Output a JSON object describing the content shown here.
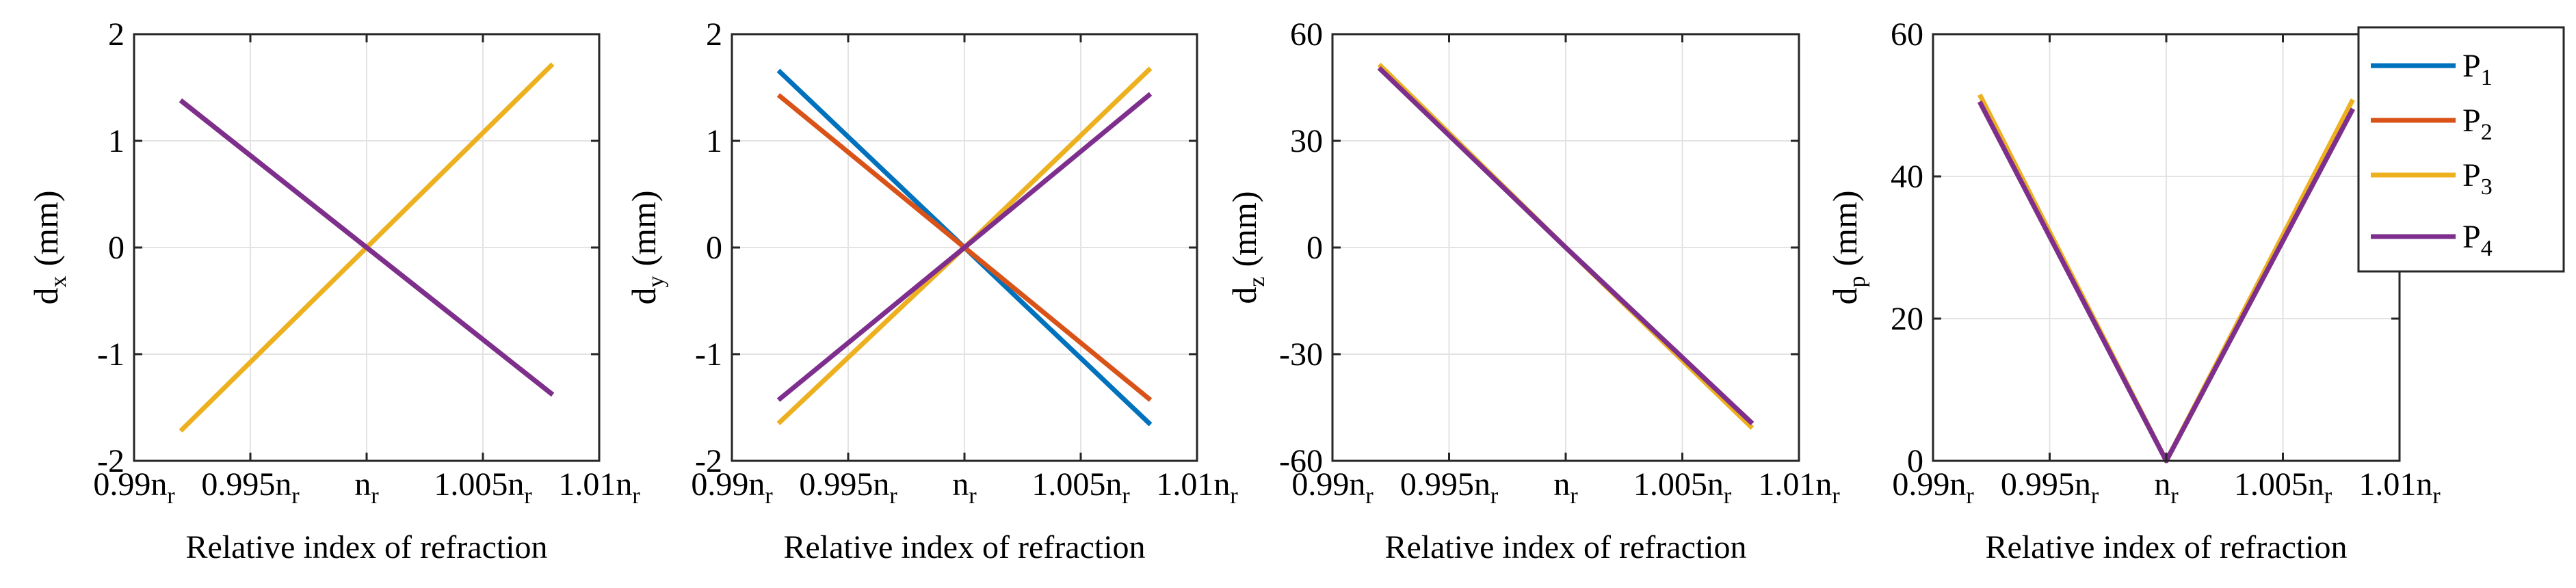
{
  "chart_data": [
    {
      "type": "line",
      "xlabel": "Relative index of refraction",
      "ylabel": "d",
      "ylabel_sub": "x",
      "ylabel_unit": "(mm)",
      "xlim": [
        0.99,
        1.01
      ],
      "ylim": [
        -2,
        2
      ],
      "yticks": [
        -2,
        -1,
        0,
        1,
        2
      ],
      "ytick_labels": [
        "-2",
        "-1",
        "0",
        "1",
        "2"
      ],
      "xticks": [
        0.99,
        0.995,
        1.0,
        1.005,
        1.01
      ],
      "xtick_labels": [
        [
          "0.99n",
          "r"
        ],
        [
          "0.995n",
          "r"
        ],
        [
          "n",
          "r"
        ],
        [
          "1.005n",
          "r"
        ],
        [
          "1.01n",
          "r"
        ]
      ],
      "grid": true,
      "series": [
        {
          "name": "P1",
          "x": [
            0.992,
            1.0,
            1.008
          ],
          "y": [
            1.38,
            0,
            -1.38
          ]
        },
        {
          "name": "P2",
          "x": [
            0.992,
            1.0,
            1.008
          ],
          "y": [
            1.38,
            0,
            -1.38
          ]
        },
        {
          "name": "P3",
          "x": [
            0.992,
            1.0,
            1.008
          ],
          "y": [
            -1.72,
            0,
            1.72
          ]
        },
        {
          "name": "P4",
          "x": [
            0.992,
            1.0,
            1.008
          ],
          "y": [
            1.38,
            0,
            -1.38
          ]
        }
      ]
    },
    {
      "type": "line",
      "xlabel": "Relative index of refraction",
      "ylabel": "d",
      "ylabel_sub": "y",
      "ylabel_unit": "(mm)",
      "xlim": [
        0.99,
        1.01
      ],
      "ylim": [
        -2,
        2
      ],
      "yticks": [
        -2,
        -1,
        0,
        1,
        2
      ],
      "ytick_labels": [
        "-2",
        "-1",
        "0",
        "1",
        "2"
      ],
      "xticks": [
        0.99,
        0.995,
        1.0,
        1.005,
        1.01
      ],
      "xtick_labels": [
        [
          "0.99n",
          "r"
        ],
        [
          "0.995n",
          "r"
        ],
        [
          "n",
          "r"
        ],
        [
          "1.005n",
          "r"
        ],
        [
          "1.01n",
          "r"
        ]
      ],
      "grid": true,
      "series": [
        {
          "name": "P1",
          "x": [
            0.992,
            1.0,
            1.008
          ],
          "y": [
            1.66,
            0,
            -1.66
          ]
        },
        {
          "name": "P2",
          "x": [
            0.992,
            1.0,
            1.008
          ],
          "y": [
            1.43,
            0,
            -1.43
          ]
        },
        {
          "name": "P3",
          "x": [
            0.992,
            1.0,
            1.008
          ],
          "y": [
            -1.65,
            0,
            1.68
          ]
        },
        {
          "name": "P4",
          "x": [
            0.992,
            1.0,
            1.008
          ],
          "y": [
            -1.43,
            0,
            1.44
          ]
        }
      ]
    },
    {
      "type": "line",
      "xlabel": "Relative index of refraction",
      "ylabel": "d",
      "ylabel_sub": "z",
      "ylabel_unit": "(mm)",
      "xlim": [
        0.99,
        1.01
      ],
      "ylim": [
        -60,
        60
      ],
      "yticks": [
        -60,
        -30,
        0,
        30,
        60
      ],
      "ytick_labels": [
        "-60",
        "-30",
        "0",
        "30",
        "60"
      ],
      "xticks": [
        0.99,
        0.995,
        1.0,
        1.005,
        1.01
      ],
      "xtick_labels": [
        [
          "0.99n",
          "r"
        ],
        [
          "0.995n",
          "r"
        ],
        [
          "n",
          "r"
        ],
        [
          "1.005n",
          "r"
        ],
        [
          "1.01n",
          "r"
        ]
      ],
      "grid": true,
      "series": [
        {
          "name": "P1",
          "x": [
            0.992,
            1.0,
            1.008
          ],
          "y": [
            50.5,
            0,
            -49.5
          ]
        },
        {
          "name": "P2",
          "x": [
            0.992,
            1.0,
            1.008
          ],
          "y": [
            50.5,
            0,
            -49.5
          ]
        },
        {
          "name": "P3",
          "x": [
            0.992,
            1.0,
            1.008
          ],
          "y": [
            51.5,
            0,
            -50.8
          ]
        },
        {
          "name": "P4",
          "x": [
            0.992,
            1.0,
            1.008
          ],
          "y": [
            50.5,
            0,
            -49.5
          ]
        }
      ]
    },
    {
      "type": "line",
      "xlabel": "Relative index of refraction",
      "ylabel": "d",
      "ylabel_sub": "p",
      "ylabel_unit": "(mm)",
      "xlim": [
        0.99,
        1.01
      ],
      "ylim": [
        0,
        60
      ],
      "yticks": [
        0,
        20,
        40,
        60
      ],
      "ytick_labels": [
        "0",
        "20",
        "40",
        "60"
      ],
      "xticks": [
        0.99,
        0.995,
        1.0,
        1.005,
        1.01
      ],
      "xtick_labels": [
        [
          "0.99n",
          "r"
        ],
        [
          "0.995n",
          "r"
        ],
        [
          "n",
          "r"
        ],
        [
          "1.005n",
          "r"
        ],
        [
          "1.01n",
          "r"
        ]
      ],
      "grid": true,
      "series": [
        {
          "name": "P1",
          "x": [
            0.992,
            1.0,
            1.008
          ],
          "y": [
            50.5,
            0,
            49.5
          ]
        },
        {
          "name": "P2",
          "x": [
            0.992,
            1.0,
            1.008
          ],
          "y": [
            50.5,
            0,
            49.5
          ]
        },
        {
          "name": "P3",
          "x": [
            0.992,
            1.0,
            1.008
          ],
          "y": [
            51.5,
            0,
            50.8
          ]
        },
        {
          "name": "P4",
          "x": [
            0.992,
            1.0,
            1.008
          ],
          "y": [
            50.5,
            0,
            49.5
          ]
        }
      ]
    }
  ],
  "legend": {
    "placement": "right",
    "items": [
      {
        "main": "P",
        "sub": "1",
        "color": "#0072BD"
      },
      {
        "main": "P",
        "sub": "2",
        "color": "#D95319"
      },
      {
        "main": "P",
        "sub": "3",
        "color": "#EDB120"
      },
      {
        "main": "P",
        "sub": "4",
        "color": "#7E2F8E"
      }
    ]
  },
  "colors": {
    "P1": "#0072BD",
    "P2": "#D95319",
    "P3": "#EDB120",
    "P4": "#7E2F8E",
    "grid": "#e3e3e3",
    "axis": "#262626"
  }
}
